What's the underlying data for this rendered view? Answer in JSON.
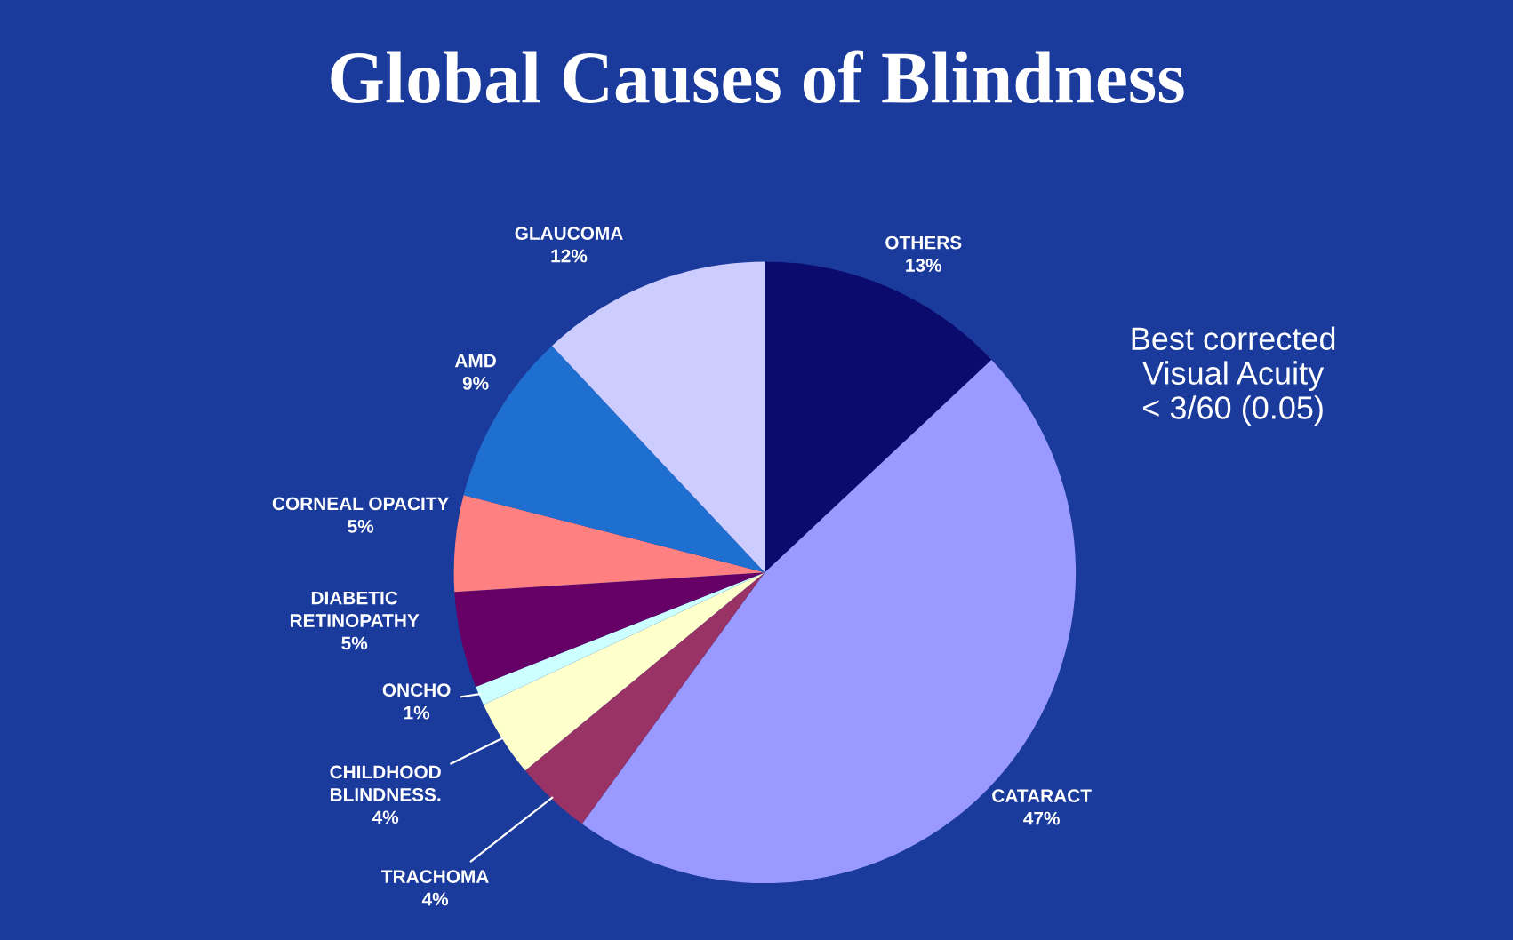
{
  "chart_data": {
    "type": "pie",
    "title": "Global Causes of Blindness",
    "categories": [
      "OTHERS",
      "CATARACT",
      "TRACHOMA",
      "CHILDHOOD\nBLINDNESS.",
      "ONCHO",
      "DIABETIC\nRETINOPATHY",
      "CORNEAL OPACITY",
      "AMD",
      "GLAUCOMA"
    ],
    "values": [
      13,
      47,
      4,
      4,
      1,
      5,
      5,
      9,
      12
    ],
    "value_labels": [
      "13%",
      "47%",
      "4%",
      "4%",
      "1%",
      "5%",
      "5%",
      "9%",
      "12%"
    ],
    "colors": [
      "#0b0b6e",
      "#9999ff",
      "#993366",
      "#ffffcc",
      "#ccffff",
      "#660066",
      "#ff8080",
      "#1f6fd0",
      "#ccccff"
    ],
    "annotations": [
      "Best corrected\nVisual Acuity\n< 3/60 (0.05)"
    ]
  }
}
